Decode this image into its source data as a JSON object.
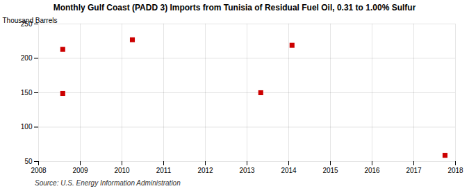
{
  "chart_data": {
    "type": "scatter",
    "title": "Monthly Gulf Coast (PADD 3) Imports from Tunisia of Residual Fuel Oil, 0.31 to 1.00% Sulfur",
    "ylabel": "Thousand Barrels",
    "source": "Source: U.S. Energy Information Administration",
    "x": [
      2008.58,
      2008.58,
      2010.25,
      2013.33,
      2014.08,
      2017.75
    ],
    "values": [
      213,
      149,
      227,
      150,
      219,
      59
    ],
    "color": "#cc0000",
    "marker": "square",
    "xlim": [
      2008,
      2018
    ],
    "xticks": [
      2008,
      2009,
      2010,
      2011,
      2012,
      2013,
      2014,
      2015,
      2016,
      2017,
      2018
    ],
    "ylim": [
      50,
      250
    ],
    "yticks": [
      50,
      100,
      150,
      200,
      250
    ],
    "grid": true
  }
}
